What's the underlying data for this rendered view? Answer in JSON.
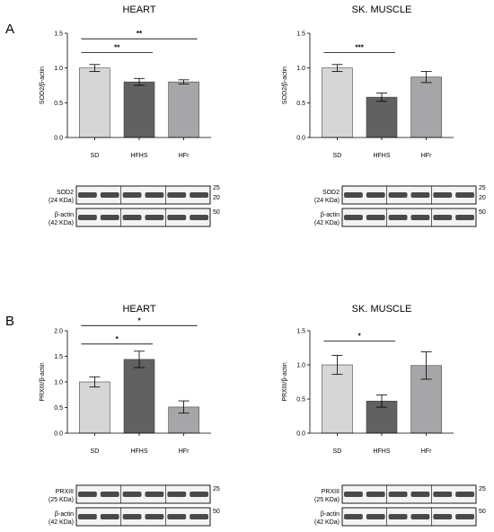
{
  "panel_labels": [
    "A",
    "B"
  ],
  "chart_data": [
    {
      "type": "bar",
      "title": "HEART",
      "ylabel": "SOD2/β-actin",
      "categories": [
        "SD",
        "HFHS",
        "HFr"
      ],
      "values": [
        1.0,
        0.8,
        0.8
      ],
      "errors": [
        0.05,
        0.05,
        0.03
      ],
      "colors": [
        "#d6d6d6",
        "#616161",
        "#a6a6a8"
      ],
      "ylim": [
        0,
        1.5
      ],
      "yticks": [
        "0.0",
        "0.5",
        "1.0",
        "1.5"
      ],
      "significance": [
        {
          "from": 0,
          "to": 1,
          "label": "**",
          "y": 1.22
        },
        {
          "from": 0,
          "to": 2,
          "label": "**",
          "y": 1.42
        }
      ],
      "blot": {
        "bands": [
          {
            "protein": "SOD2",
            "weight": "(24 KDa)",
            "markers": [
              "25",
              "20"
            ]
          },
          {
            "protein": "β-actin",
            "weight": "(42 KDa)",
            "markers": [
              "50"
            ]
          }
        ]
      }
    },
    {
      "type": "bar",
      "title": "SK. MUSCLE",
      "ylabel": "SOD2/β-actin",
      "categories": [
        "SD",
        "HFHS",
        "HFr"
      ],
      "values": [
        1.0,
        0.58,
        0.87
      ],
      "errors": [
        0.05,
        0.06,
        0.08
      ],
      "colors": [
        "#d6d6d6",
        "#616161",
        "#a6a6a8"
      ],
      "ylim": [
        0,
        1.5
      ],
      "yticks": [
        "0.0",
        "0.5",
        "1.0",
        "1.5"
      ],
      "significance": [
        {
          "from": 0,
          "to": 1,
          "label": "***",
          "y": 1.22
        }
      ],
      "blot": {
        "bands": [
          {
            "protein": "SOD2",
            "weight": "(24 KDa)",
            "markers": [
              "25",
              "20"
            ]
          },
          {
            "protein": "β-actin",
            "weight": "(42 KDa)",
            "markers": [
              "50"
            ]
          }
        ]
      }
    },
    {
      "type": "bar",
      "title": "HEART",
      "ylabel": "PRXIII/β-actin",
      "categories": [
        "SD",
        "HFHS",
        "HFr"
      ],
      "values": [
        1.0,
        1.44,
        0.51
      ],
      "errors": [
        0.1,
        0.16,
        0.12
      ],
      "colors": [
        "#d6d6d6",
        "#616161",
        "#a6a6a8"
      ],
      "ylim": [
        0,
        2.0
      ],
      "yticks": [
        "0.0",
        "0.5",
        "1.0",
        "1.5",
        "2.0"
      ],
      "significance": [
        {
          "from": 0,
          "to": 1,
          "label": "*",
          "y": 1.74
        },
        {
          "from": 0,
          "to": 2,
          "label": "*",
          "y": 2.1
        }
      ],
      "blot": {
        "bands": [
          {
            "protein": "PRXIII",
            "weight": "(25 KDa)",
            "markers": [
              "25"
            ]
          },
          {
            "protein": "β-actin",
            "weight": "(42 KDa)",
            "markers": [
              "50"
            ]
          }
        ]
      }
    },
    {
      "type": "bar",
      "title": "SK. MUSCLE",
      "ylabel": "PRXIII/β-actin",
      "categories": [
        "SD",
        "HFHS",
        "HFr"
      ],
      "values": [
        1.0,
        0.47,
        0.99
      ],
      "errors": [
        0.14,
        0.09,
        0.2
      ],
      "colors": [
        "#d6d6d6",
        "#616161",
        "#a6a6a8"
      ],
      "ylim": [
        0,
        1.5
      ],
      "yticks": [
        "0.0",
        "0.5",
        "1.0",
        "1.5"
      ],
      "significance": [
        {
          "from": 0,
          "to": 1,
          "label": "*",
          "y": 1.35
        }
      ],
      "blot": {
        "bands": [
          {
            "protein": "PRXIII",
            "weight": "(25 KDa)",
            "markers": [
              "25"
            ]
          },
          {
            "protein": "β-actin",
            "weight": "(42 KDa)",
            "markers": [
              "50"
            ]
          }
        ]
      }
    }
  ]
}
